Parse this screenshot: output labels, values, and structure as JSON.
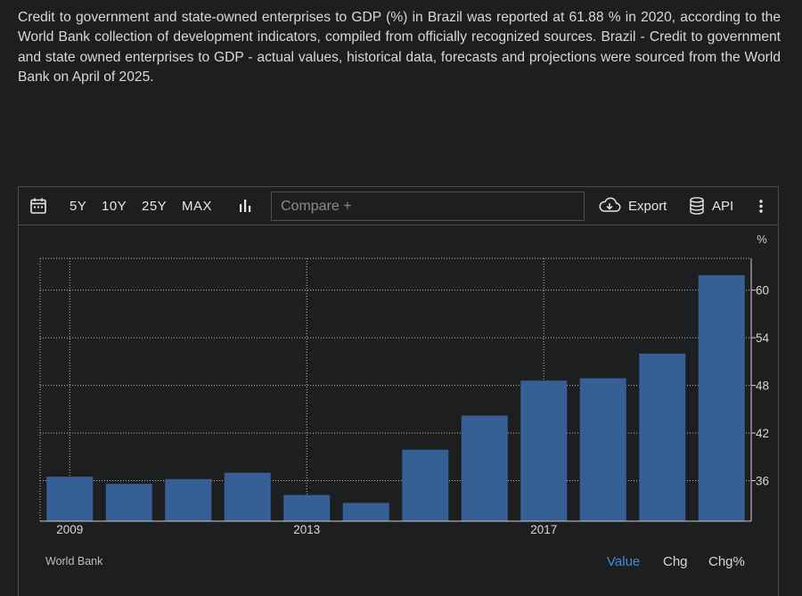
{
  "description": "Credit to government and state-owned enterprises to GDP (%) in Brazil was reported at 61.88 % in 2020, according to the World Bank collection of development indicators, compiled from officially recognized sources. Brazil - Credit to government and state owned enterprises to GDP - actual values, historical data, forecasts and projections were sourced from the World Bank on April of 2025.",
  "toolbar": {
    "ranges": [
      "5Y",
      "10Y",
      "25Y",
      "MAX"
    ],
    "compare_placeholder": "Compare +",
    "export_label": "Export",
    "api_label": "API"
  },
  "footer": {
    "source": "World Bank",
    "tabs": [
      "Value",
      "Chg",
      "Chg%"
    ],
    "active_tab": "Value"
  },
  "colors": {
    "bar": "#365f96",
    "active_tab": "#3e8ed8",
    "background": "#1d1e20"
  },
  "chart_data": {
    "type": "bar",
    "unit": "%",
    "categories": [
      "2009",
      "2010",
      "2011",
      "2012",
      "2013",
      "2014",
      "2015",
      "2016",
      "2017",
      "2018",
      "2019",
      "2020"
    ],
    "x_tick_labels": [
      "2009",
      "2013",
      "2017"
    ],
    "values": [
      36.5,
      35.6,
      36.2,
      37.0,
      34.2,
      33.2,
      39.9,
      44.2,
      48.6,
      48.9,
      52.0,
      61.88
    ],
    "y_ticks": [
      36,
      42,
      48,
      54,
      60
    ],
    "ylim": [
      30.9,
      64.0
    ],
    "grid": true,
    "source": "World Bank"
  }
}
